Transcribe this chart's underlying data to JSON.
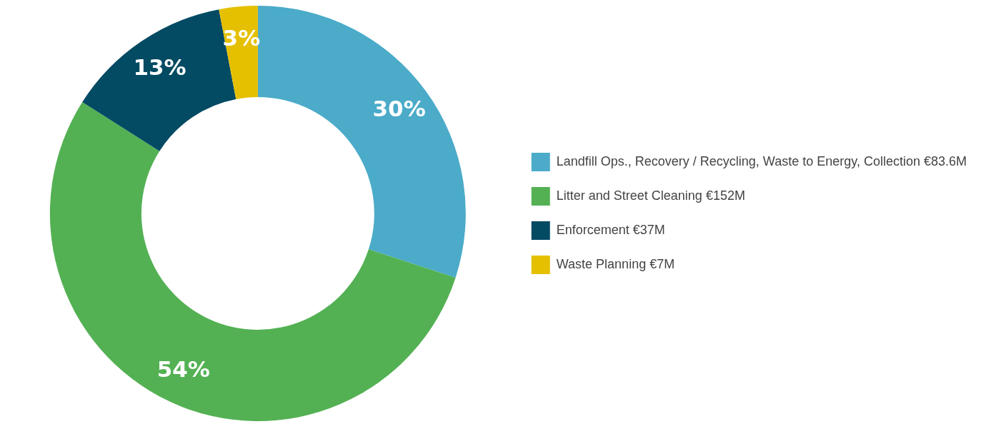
{
  "chart_data": {
    "type": "donut",
    "categories": [
      "Landfill Ops., Recovery / Recycling, Waste to Energy, Collection €83.6M",
      "Litter and Street Cleaning €152M",
      "Enforcement €37M",
      "Waste Planning €7M"
    ],
    "values": [
      30,
      54,
      13,
      3
    ],
    "colors": [
      "#4babc9",
      "#53b153",
      "#034a63",
      "#e5c000"
    ],
    "value_labels": [
      "30%",
      "54%",
      "13%",
      "3%"
    ],
    "legend": "right"
  }
}
